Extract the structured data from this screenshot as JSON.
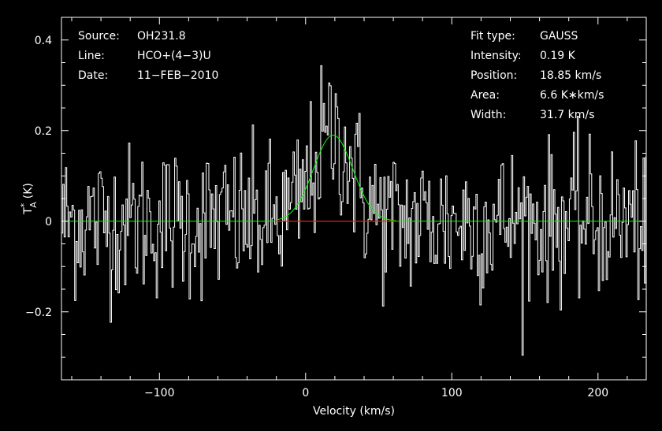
{
  "chart_data": {
    "type": "line",
    "xlabel": "Velocity (km/s)",
    "ylabel_main": "T",
    "ylabel_sup": "*",
    "ylabel_sub": "A",
    "ylabel_unit": "(K)",
    "xlim": [
      -167,
      233
    ],
    "ylim": [
      -0.35,
      0.45
    ],
    "xticks": [
      -100,
      0,
      100,
      200
    ],
    "xtick_labels": [
      "−100",
      "0",
      "100",
      "200"
    ],
    "yticks": [
      -0.2,
      0,
      0.2,
      0.4
    ],
    "ytick_labels": [
      "−0.2",
      "0",
      "0.2",
      "0.4"
    ],
    "grid": false,
    "info_left": [
      {
        "key": "Source:",
        "value": "OH231.8"
      },
      {
        "key": "Line:",
        "value": "HCO+(4−3)U"
      },
      {
        "key": "Date:",
        "value": "11−FEB−2010"
      }
    ],
    "info_right": [
      {
        "key": "Fit type:",
        "value": "GAUSS"
      },
      {
        "key": "Intensity:",
        "value": "0.19 K"
      },
      {
        "key": "Position:",
        "value": "18.85 km/s"
      },
      {
        "key": "Area:",
        "value": "6.6 K∗km/s"
      },
      {
        "key": "Width:",
        "value": "31.7 km/s"
      }
    ],
    "series": [
      {
        "type": "histogram",
        "color": "#ffffff",
        "noise_rms": 0.085,
        "x_step": 0.9
      },
      {
        "type": "gaussian_fit",
        "color": "#00ff00",
        "amplitude": 0.19,
        "center": 18.85,
        "fwhm": 31.7
      },
      {
        "type": "fit_window",
        "color": "#ff0000",
        "x": [
          -21,
          63
        ],
        "y": 0
      }
    ]
  }
}
